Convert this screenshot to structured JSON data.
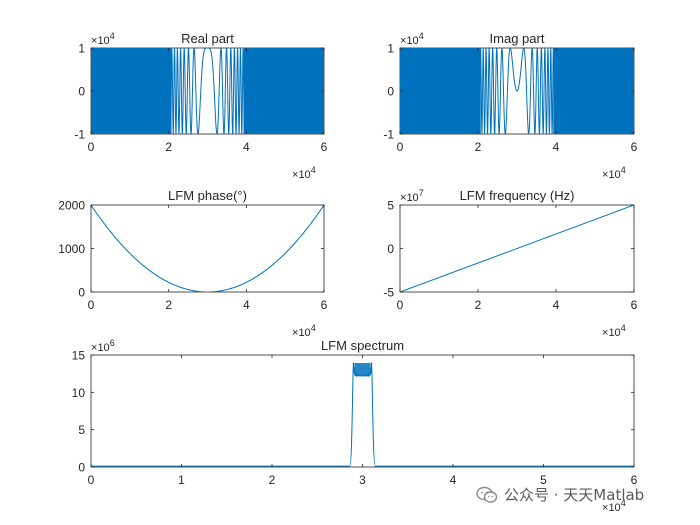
{
  "colors": {
    "line": "#0072BD",
    "axis": "#262626",
    "background": "#ffffff"
  },
  "watermark": {
    "text": "公众号 · 天天Matlab",
    "icon": "wechat-icon"
  },
  "chart_data": [
    {
      "id": "real",
      "type": "line",
      "title": "Real part",
      "x_exponent": "10",
      "x_exponent_power": "4",
      "y_exponent": "10",
      "y_exponent_power": "4",
      "xlim": [
        0,
        60000
      ],
      "ylim": [
        -10000,
        10000
      ],
      "xticks": [
        0,
        20000,
        40000,
        60000
      ],
      "xticklabels": [
        "0",
        "2",
        "4",
        "6"
      ],
      "yticks": [
        -10000,
        0,
        10000
      ],
      "yticklabels": [
        "-1",
        "0",
        "1"
      ],
      "series": [
        {
          "kind": "chirp-cos",
          "amplitude": 10000,
          "x_start": 0,
          "x_end": 60000,
          "center_x": 30000
        }
      ]
    },
    {
      "id": "imag",
      "type": "line",
      "title": "Imag part",
      "x_exponent": "10",
      "x_exponent_power": "4",
      "y_exponent": "10",
      "y_exponent_power": "4",
      "xlim": [
        0,
        60000
      ],
      "ylim": [
        -10000,
        10000
      ],
      "xticks": [
        0,
        20000,
        40000,
        60000
      ],
      "xticklabels": [
        "0",
        "2",
        "4",
        "6"
      ],
      "yticks": [
        -10000,
        0,
        10000
      ],
      "yticklabels": [
        "-1",
        "0",
        "1"
      ],
      "series": [
        {
          "kind": "chirp-sin",
          "amplitude": 10000,
          "x_start": 0,
          "x_end": 60000,
          "center_x": 30000
        }
      ]
    },
    {
      "id": "phase",
      "type": "line",
      "title": "LFM phase(°)",
      "x_exponent": "10",
      "x_exponent_power": "4",
      "xlim": [
        0,
        60000
      ],
      "ylim": [
        0,
        2000
      ],
      "xticks": [
        0,
        20000,
        40000,
        60000
      ],
      "xticklabels": [
        "0",
        "2",
        "4",
        "6"
      ],
      "yticks": [
        0,
        1000,
        2000
      ],
      "yticklabels": [
        "0",
        "1000",
        "2000"
      ],
      "series": [
        {
          "kind": "parabola",
          "x": [
            0,
            30000,
            60000
          ],
          "y": [
            2000,
            0,
            2000
          ]
        }
      ]
    },
    {
      "id": "freq",
      "type": "line",
      "title": "LFM frequency (Hz)",
      "x_exponent": "10",
      "x_exponent_power": "4",
      "y_exponent": "10",
      "y_exponent_power": "7",
      "xlim": [
        0,
        60000
      ],
      "ylim": [
        -50000000,
        50000000
      ],
      "xticks": [
        0,
        20000,
        40000,
        60000
      ],
      "xticklabels": [
        "0",
        "2",
        "4",
        "6"
      ],
      "yticks": [
        -50000000,
        0,
        50000000
      ],
      "yticklabels": [
        "-5",
        "0",
        "5"
      ],
      "series": [
        {
          "kind": "linear",
          "x": [
            0,
            60000
          ],
          "y": [
            -50000000,
            50000000
          ]
        }
      ]
    },
    {
      "id": "spectrum",
      "type": "line",
      "title": "LFM spectrum",
      "x_exponent": "10",
      "x_exponent_power": "4",
      "y_exponent": "10",
      "y_exponent_power": "6",
      "xlim": [
        0,
        60000
      ],
      "ylim": [
        0,
        15000000
      ],
      "xticks": [
        0,
        10000,
        20000,
        30000,
        40000,
        50000,
        60000
      ],
      "xticklabels": [
        "0",
        "1",
        "2",
        "3",
        "4",
        "5",
        "6"
      ],
      "yticks": [
        0,
        5000000,
        10000000,
        15000000
      ],
      "yticklabels": [
        "0",
        "5",
        "10",
        "15"
      ],
      "series": [
        {
          "kind": "rect-spectrum",
          "band": [
            29000,
            31000
          ],
          "level": 12200000,
          "ripple_max": 14000000
        }
      ]
    }
  ]
}
